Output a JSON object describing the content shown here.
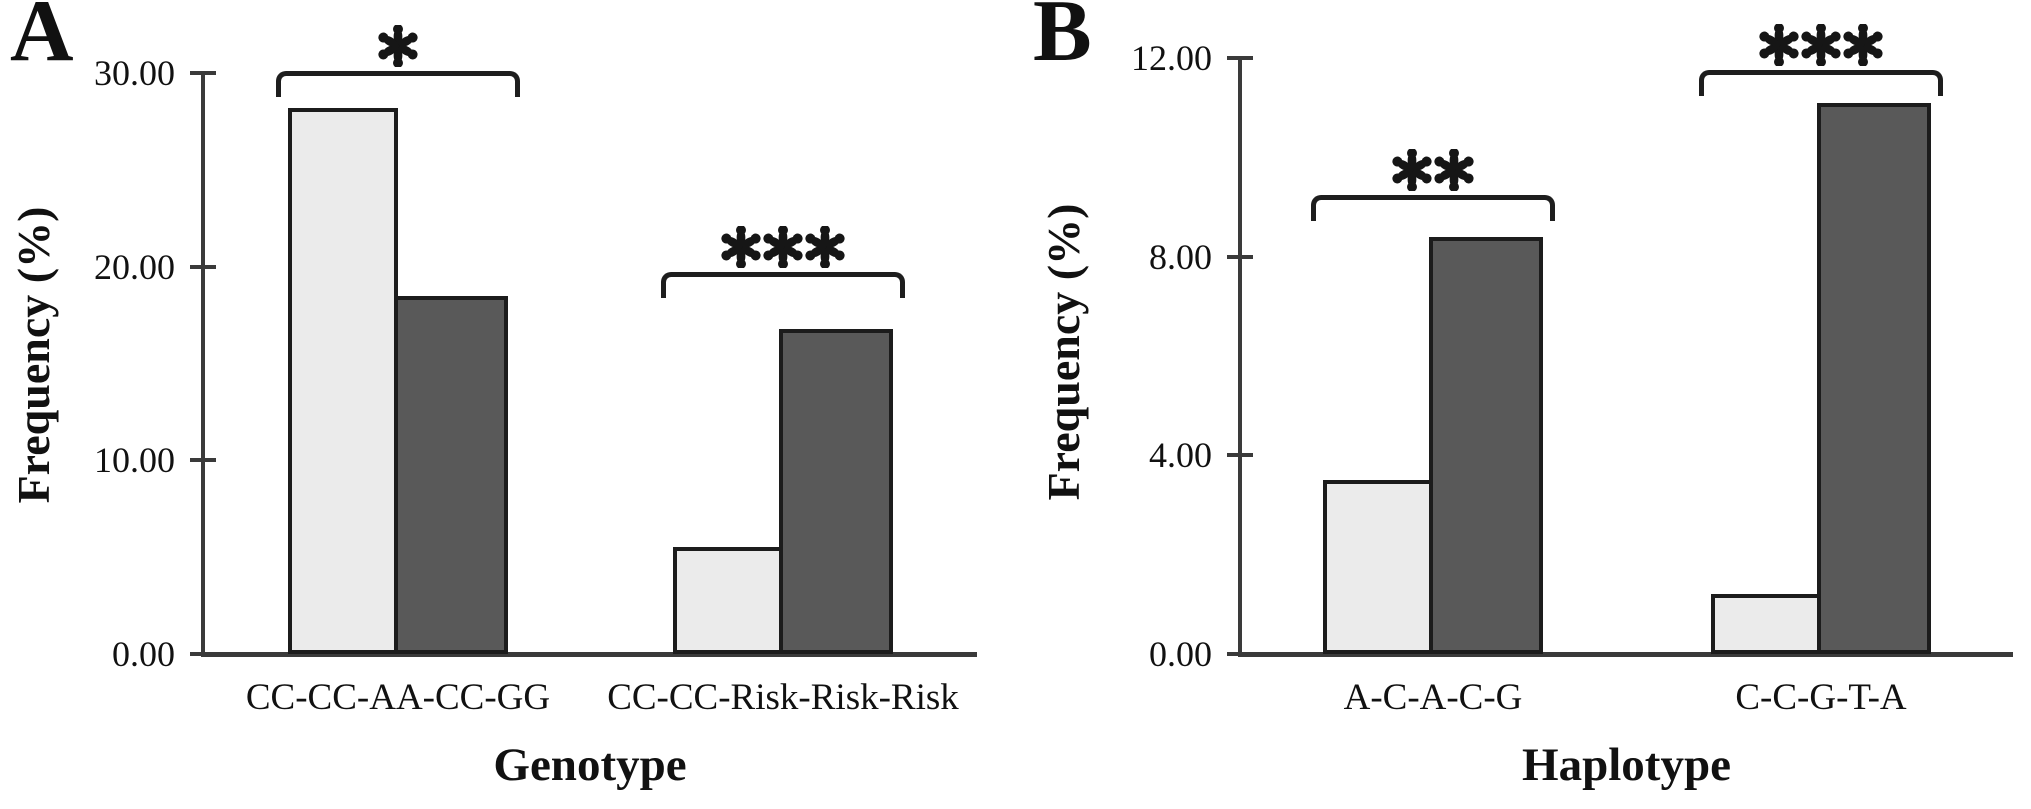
{
  "figure_title": "",
  "colors": {
    "background": "#ffffff",
    "light_bar": "#ebebeb",
    "dark_bar": "#595959",
    "bar_outline": "#1c1c1c",
    "axis": "#3a3a3a",
    "bracket": "#1e1e1e",
    "text": "#111111"
  },
  "chart_data": [
    {
      "type": "bar",
      "panel": "A",
      "title": "",
      "xlabel": "Genotype",
      "ylabel": "Frequency (%)",
      "ylim": [
        0,
        30
      ],
      "yticks": [
        "30.00",
        "20.00",
        "10.00",
        "0.00"
      ],
      "ytick_values": [
        30,
        20,
        10,
        0
      ],
      "grid": false,
      "legend": "none",
      "categories": [
        "CC-CC-AA-CC-GG",
        "CC-CC-Risk-Risk-Risk"
      ],
      "series": [
        {
          "name": "light-gray-series",
          "color": "#ebebeb",
          "values": [
            28.2,
            5.5
          ]
        },
        {
          "name": "dark-gray-series",
          "color": "#595959",
          "values": [
            18.5,
            16.8
          ]
        }
      ],
      "annotations": [
        {
          "group": 0,
          "significance": "*"
        },
        {
          "group": 1,
          "significance": "***"
        }
      ]
    },
    {
      "type": "bar",
      "panel": "B",
      "title": "",
      "xlabel": "Haplotype",
      "ylabel": "Frequency (%)",
      "ylim": [
        0,
        12
      ],
      "yticks": [
        "12.00",
        "8.00",
        "4.00",
        "0.00"
      ],
      "ytick_values": [
        12,
        8,
        4,
        0
      ],
      "grid": false,
      "legend": "none",
      "categories": [
        "A-C-A-C-G",
        "C-C-G-T-A"
      ],
      "series": [
        {
          "name": "light-gray-series",
          "color": "#ebebeb",
          "values": [
            3.5,
            1.2
          ]
        },
        {
          "name": "dark-gray-series",
          "color": "#595959",
          "values": [
            8.4,
            11.1
          ]
        }
      ],
      "annotations": [
        {
          "group": 0,
          "significance": "**"
        },
        {
          "group": 1,
          "significance": "***"
        }
      ]
    }
  ]
}
